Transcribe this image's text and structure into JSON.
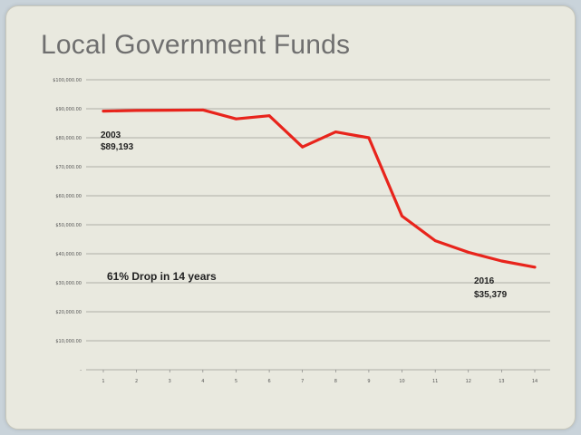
{
  "title": "Local Government Funds",
  "chart_data": {
    "type": "line",
    "x": [
      "1",
      "2",
      "3",
      "4",
      "5",
      "6",
      "7",
      "8",
      "9",
      "10",
      "11",
      "12",
      "13",
      "14"
    ],
    "series": [
      {
        "values": [
          89193,
          89400,
          89500,
          89600,
          86500,
          87600,
          76800,
          82000,
          80000,
          53000,
          44500,
          40500,
          37500,
          35379
        ]
      }
    ],
    "y_ticks": [
      "-",
      "$10,000.00",
      "$20,000.00",
      "$30,000.00",
      "$40,000.00",
      "$50,000.00",
      "$60,000.00",
      "$70,000.00",
      "$80,000.00",
      "$90,000.00",
      "$100,000.00"
    ],
    "ylim": [
      0,
      100000
    ],
    "grid": true,
    "line_color": "#e8241c",
    "annotations": {
      "start_year": "2003",
      "start_value": "$89,193",
      "drop": "61% Drop in 14 years",
      "end_year": "2016",
      "end_value": "$35,379"
    }
  }
}
